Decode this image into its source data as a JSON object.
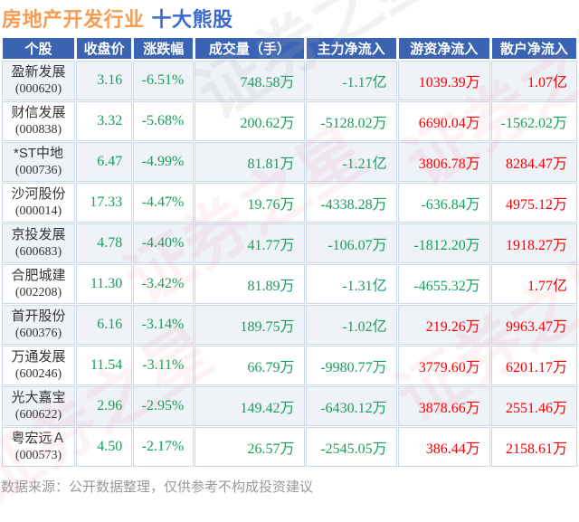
{
  "title": {
    "industry": "房地产开发行业",
    "suffix": "十大熊股"
  },
  "colors": {
    "header_bg": "#3A63B4",
    "title_orange": "#F99C51",
    "title_blue": "#3A6BCB",
    "down_green": "#16A05D",
    "up_red": "#F40000",
    "alt_row_bg": "#EFF2F7",
    "grid_line": "#CBD9EA",
    "footer_gray": "#999999"
  },
  "watermark": "证券之星",
  "footer": "数据来源：公开数据整理，仅供参考不构成投资建议",
  "chart_data": {
    "type": "table",
    "title": "房地产开发行业 十大熊股",
    "columns": [
      "个股",
      "收盘价",
      "涨跌幅",
      "成交量（手）",
      "主力净流入",
      "游资净流入",
      "散户净流入"
    ],
    "rows": [
      {
        "name": "盈新发展",
        "code": "(000620)",
        "close": "3.16",
        "change": "-6.51%",
        "volume": "748.58万",
        "main": "-1.17亿",
        "hot": "1039.39万",
        "retail": "1.07亿"
      },
      {
        "name": "财信发展",
        "code": "(000838)",
        "close": "3.32",
        "change": "-5.68%",
        "volume": "200.62万",
        "main": "-5128.02万",
        "hot": "6690.04万",
        "retail": "-1562.02万"
      },
      {
        "name": "*ST中地",
        "code": "(000736)",
        "close": "6.47",
        "change": "-4.99%",
        "volume": "81.81万",
        "main": "-1.21亿",
        "hot": "3806.78万",
        "retail": "8284.47万"
      },
      {
        "name": "沙河股份",
        "code": "(000014)",
        "close": "17.33",
        "change": "-4.47%",
        "volume": "19.76万",
        "main": "-4338.28万",
        "hot": "-636.84万",
        "retail": "4975.12万"
      },
      {
        "name": "京投发展",
        "code": "(600683)",
        "close": "4.78",
        "change": "-4.40%",
        "volume": "41.77万",
        "main": "-106.07万",
        "hot": "-1812.20万",
        "retail": "1918.27万"
      },
      {
        "name": "合肥城建",
        "code": "(002208)",
        "close": "11.30",
        "change": "-3.42%",
        "volume": "81.89万",
        "main": "-1.31亿",
        "hot": "-4655.32万",
        "retail": "1.77亿"
      },
      {
        "name": "首开股份",
        "code": "(600376)",
        "close": "6.16",
        "change": "-3.14%",
        "volume": "189.75万",
        "main": "-1.02亿",
        "hot": "219.26万",
        "retail": "9963.47万"
      },
      {
        "name": "万通发展",
        "code": "(600246)",
        "close": "11.54",
        "change": "-3.11%",
        "volume": "66.79万",
        "main": "-9980.77万",
        "hot": "3779.60万",
        "retail": "6201.17万"
      },
      {
        "name": "光大嘉宝",
        "code": "(600622)",
        "close": "2.96",
        "change": "-2.95%",
        "volume": "149.42万",
        "main": "-6430.12万",
        "hot": "3878.66万",
        "retail": "2551.46万"
      },
      {
        "name": "粤宏远Ａ",
        "code": "(000573)",
        "close": "4.50",
        "change": "-2.17%",
        "volume": "26.57万",
        "main": "-2545.05万",
        "hot": "386.44万",
        "retail": "2158.61万"
      }
    ]
  }
}
